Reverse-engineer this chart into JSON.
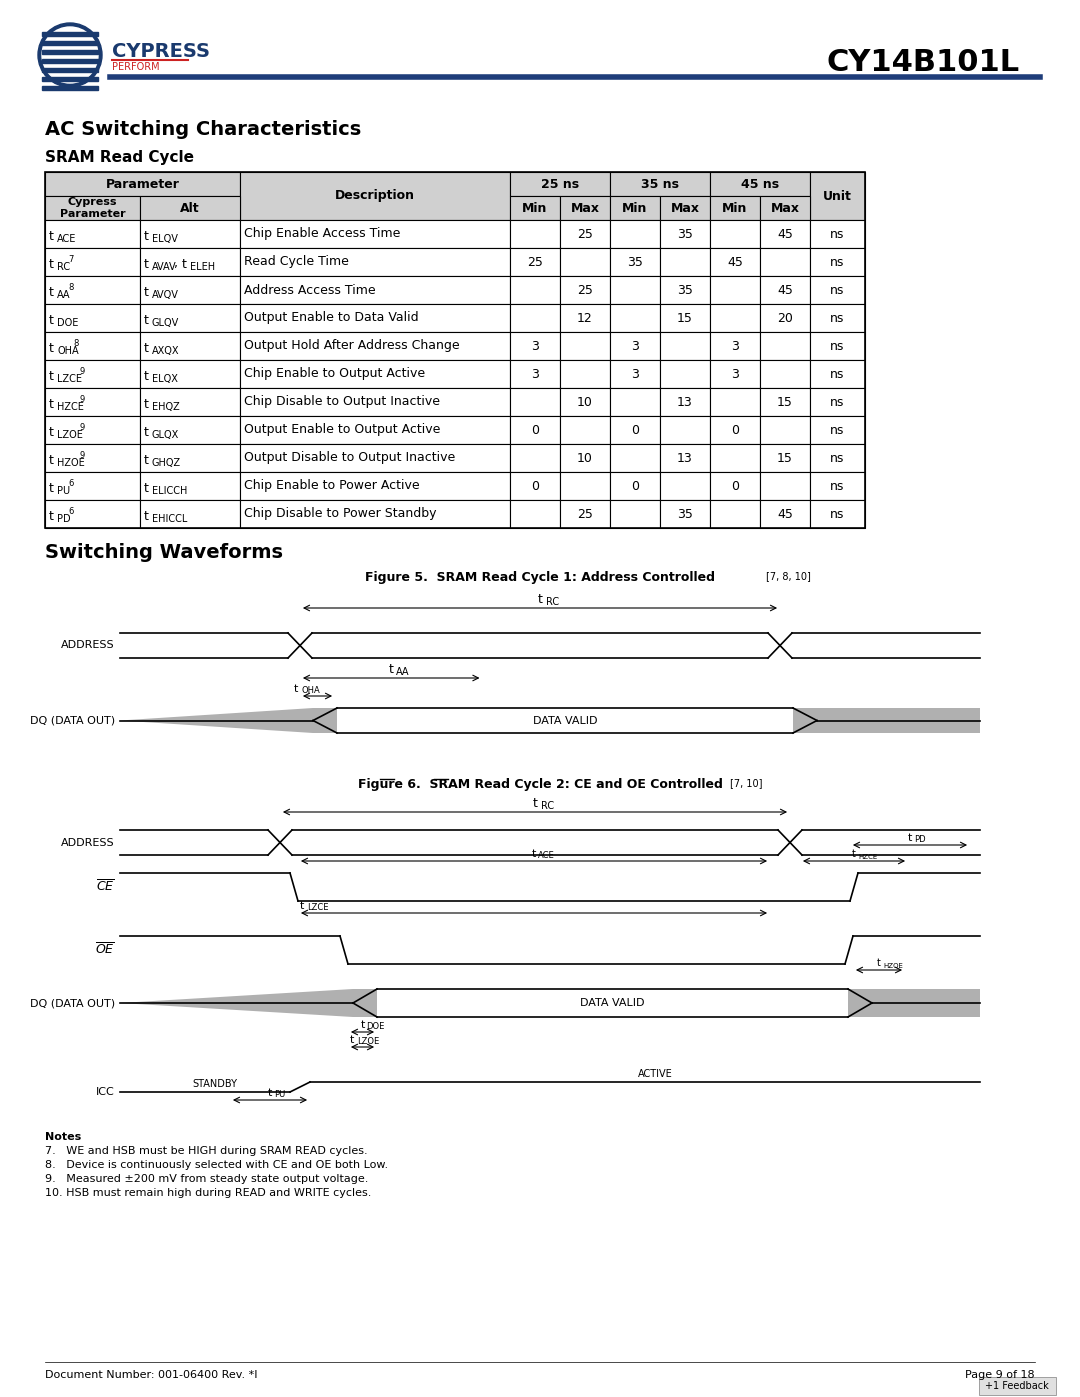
{
  "title": "CY14B101L",
  "section_title": "AC Switching Characteristics",
  "subsection_title": "SRAM Read Cycle",
  "header_row1": [
    "Parameter",
    "",
    "Description",
    "25 ns",
    "",
    "35 ns",
    "",
    "45 ns",
    "",
    "Unit"
  ],
  "header_row2": [
    "Cypress\nParameter",
    "Alt",
    "Description",
    "Min",
    "Max",
    "Min",
    "Max",
    "Min",
    "Max",
    "Unit"
  ],
  "table_rows": [
    [
      "t_ACE",
      "t_ELQV",
      "Chip Enable Access Time",
      "",
      "25",
      "",
      "35",
      "",
      "45",
      "ns"
    ],
    [
      "t_RC [7]",
      "t_AVAV, t_ELEH",
      "Read Cycle Time",
      "25",
      "",
      "35",
      "",
      "45",
      "",
      "ns"
    ],
    [
      "t_AA [8]",
      "t_AVQV",
      "Address Access Time",
      "",
      "25",
      "",
      "35",
      "",
      "45",
      "ns"
    ],
    [
      "t_DOE",
      "t_GLQV",
      "Output Enable to Data Valid",
      "",
      "12",
      "",
      "15",
      "",
      "20",
      "ns"
    ],
    [
      "t_OHA [8]",
      "t_AXQX",
      "Output Hold After Address Change",
      "3",
      "",
      "3",
      "",
      "3",
      "",
      "ns"
    ],
    [
      "t_LZCE [9]",
      "t_ELQX",
      "Chip Enable to Output Active",
      "3",
      "",
      "3",
      "",
      "3",
      "",
      "ns"
    ],
    [
      "t_HZCE [9]",
      "t_EHQZ",
      "Chip Disable to Output Inactive",
      "",
      "10",
      "",
      "13",
      "",
      "15",
      "ns"
    ],
    [
      "t_LZOE [9]",
      "t_GLQX",
      "Output Enable to Output Active",
      "0",
      "",
      "0",
      "",
      "0",
      "",
      "ns"
    ],
    [
      "t_HZOE [9]",
      "t_GHQZ",
      "Output Disable to Output Inactive",
      "",
      "10",
      "",
      "13",
      "",
      "15",
      "ns"
    ],
    [
      "t_PU [6]",
      "t_ELICCH",
      "Chip Enable to Power Active",
      "0",
      "",
      "0",
      "",
      "0",
      "",
      "ns"
    ],
    [
      "t_PD [6]",
      "t_EHICCL",
      "Chip Disable to Power Standby",
      "",
      "25",
      "",
      "35",
      "",
      "45",
      "ns"
    ]
  ],
  "fig5_title": "Figure 5.  SRAM Read Cycle 1: Address Controlled",
  "fig5_superscript": "[7, 8, 10]",
  "fig6_title": "Figure 6.  SRAM Read Cycle 2: CE and OE Controlled",
  "fig6_superscript": "[7, 10]",
  "notes_title": "Notes",
  "notes": [
    "7.   WE and HSB must be HIGH during SRAM READ cycles.",
    "8.   Device is continuously selected with CE and OE both Low.",
    "9.   Measured ±200 mV from steady state output voltage.",
    "10. HSB must remain high during READ and WRITE cycles."
  ],
  "footer_left": "Document Number: 001-06400 Rev. *I",
  "footer_right": "Page 9 of 18",
  "bg_color": "#ffffff",
  "header_bg": "#d0d0d0",
  "table_border": "#000000",
  "blue_line": "#1f3d7a",
  "text_color": "#000000"
}
